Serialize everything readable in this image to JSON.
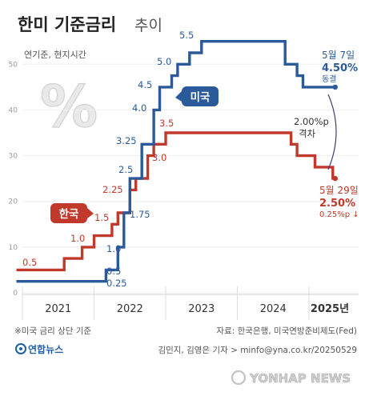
{
  "header": {
    "title_main": "한미 기준금리",
    "title_sub": "추이",
    "subtitle": "연기준, 현지시간"
  },
  "chart_data": {
    "type": "line",
    "step": true,
    "title": "한미 기준금리 추이",
    "ylim": [
      0,
      5.6
    ],
    "yticks": [
      "0",
      "10",
      "20",
      "30",
      "40",
      "50"
    ],
    "x_categories": [
      "2021",
      "2022",
      "2023",
      "2024",
      "2025년"
    ],
    "grid": true,
    "colors": {
      "us": "#2b5a9a",
      "kr": "#c0392b"
    },
    "series": [
      {
        "name": "미국",
        "key": "us",
        "labels": [
          "0.25",
          "0.5",
          "1.0",
          "1.75",
          "2.5",
          "3.25",
          "4.0",
          "4.5",
          "5.0",
          "5.5"
        ],
        "points": [
          {
            "x": "2020-12",
            "y": 0.25
          },
          {
            "x": "2022-03",
            "y": 0.5
          },
          {
            "x": "2022-05",
            "y": 1.0
          },
          {
            "x": "2022-06",
            "y": 1.75
          },
          {
            "x": "2022-07",
            "y": 2.5
          },
          {
            "x": "2022-09",
            "y": 3.25
          },
          {
            "x": "2022-11",
            "y": 4.0
          },
          {
            "x": "2022-12",
            "y": 4.5
          },
          {
            "x": "2023-02",
            "y": 4.75
          },
          {
            "x": "2023-03",
            "y": 5.0
          },
          {
            "x": "2023-05",
            "y": 5.25
          },
          {
            "x": "2023-07",
            "y": 5.5
          },
          {
            "x": "2024-09",
            "y": 5.0
          },
          {
            "x": "2024-11",
            "y": 4.75
          },
          {
            "x": "2024-12",
            "y": 4.5
          },
          {
            "x": "2025-05",
            "y": 4.5
          }
        ]
      },
      {
        "name": "한국",
        "key": "kr",
        "labels": [
          "0.5",
          "1.0",
          "1.5",
          "2.25",
          "3.0",
          "3.5"
        ],
        "points": [
          {
            "x": "2020-12",
            "y": 0.5
          },
          {
            "x": "2021-08",
            "y": 0.75
          },
          {
            "x": "2021-11",
            "y": 1.0
          },
          {
            "x": "2022-01",
            "y": 1.25
          },
          {
            "x": "2022-04",
            "y": 1.5
          },
          {
            "x": "2022-05",
            "y": 1.75
          },
          {
            "x": "2022-07",
            "y": 2.25
          },
          {
            "x": "2022-08",
            "y": 2.5
          },
          {
            "x": "2022-10",
            "y": 3.0
          },
          {
            "x": "2022-11",
            "y": 3.25
          },
          {
            "x": "2023-01",
            "y": 3.5
          },
          {
            "x": "2024-10",
            "y": 3.25
          },
          {
            "x": "2024-11",
            "y": 3.0
          },
          {
            "x": "2025-02",
            "y": 2.75
          },
          {
            "x": "2025-05",
            "y": 2.5
          }
        ]
      }
    ]
  },
  "annotations": {
    "us_tag": "미국",
    "kr_tag": "한국",
    "us_date": "5월 7일",
    "us_rate": "4.50%",
    "us_note": "동결",
    "gap_value": "2.00%p",
    "gap_label": "격차",
    "kr_date": "5월 29일",
    "kr_rate": "2.50%",
    "kr_note": "0.25%p ↓",
    "percent_symbol": "%"
  },
  "footer": {
    "note": "※미국 금리 상단 기준",
    "source": "자료: 한국은행, 미국연방준비제도(Fed)",
    "logo": "연합뉴스",
    "credit": "김민지, 김영은 기자 > minfo@yna.co.kr/20250529",
    "watermark": "YONHAP NEWS"
  }
}
